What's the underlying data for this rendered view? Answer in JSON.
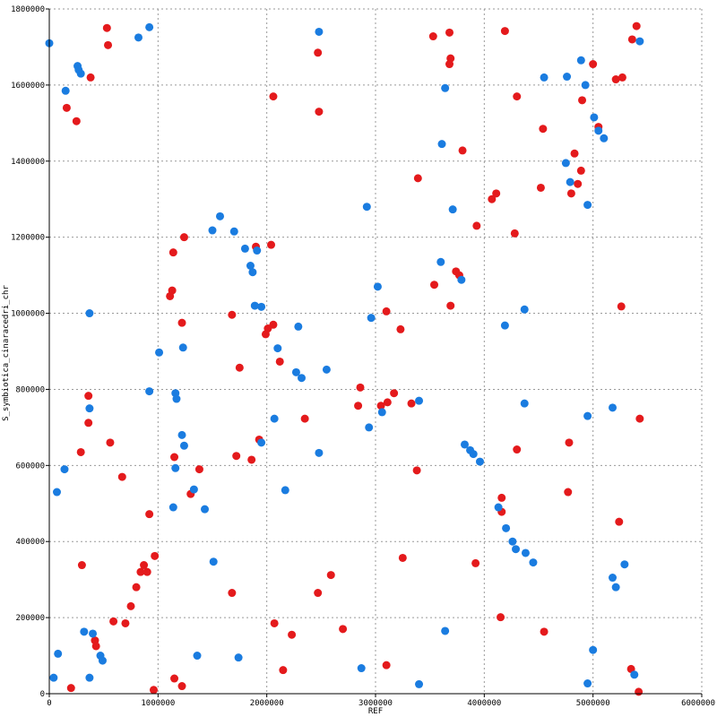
{
  "chart_data": {
    "type": "scatter",
    "title": "",
    "xlabel": "REF",
    "ylabel": "S_symbiotica_cinaracedri_chr",
    "xlim": [
      0,
      6000000
    ],
    "ylim": [
      0,
      1800000
    ],
    "x_ticks": [
      0,
      1000000,
      2000000,
      3000000,
      4000000,
      5000000,
      6000000
    ],
    "y_ticks": [
      0,
      200000,
      400000,
      600000,
      800000,
      1000000,
      1200000,
      1400000,
      1600000,
      1800000
    ],
    "x_tick_labels": [
      "0",
      "1000000",
      "2000000",
      "3000000",
      "4000000",
      "5000000",
      "6000000"
    ],
    "y_tick_labels": [
      "0",
      "200000",
      "400000",
      "600000",
      "800000",
      "1000000",
      "1200000",
      "1400000",
      "1600000",
      "1800000"
    ],
    "grid": true,
    "series": [
      {
        "color": "#e41a1c",
        "points": [
          [
            530000,
            1750000
          ],
          [
            540000,
            1705000
          ],
          [
            160000,
            1540000
          ],
          [
            250000,
            1505000
          ],
          [
            380000,
            1620000
          ],
          [
            2470000,
            1685000
          ],
          [
            2480000,
            1530000
          ],
          [
            2060000,
            1570000
          ],
          [
            3530000,
            1728000
          ],
          [
            3680000,
            1738000
          ],
          [
            3690000,
            1670000
          ],
          [
            3680000,
            1655000
          ],
          [
            4190000,
            1742000
          ],
          [
            4300000,
            1570000
          ],
          [
            3800000,
            1428000
          ],
          [
            3390000,
            1355000
          ],
          [
            3930000,
            1230000
          ],
          [
            4070000,
            1300000
          ],
          [
            4110000,
            1315000
          ],
          [
            4280000,
            1210000
          ],
          [
            4540000,
            1485000
          ],
          [
            4520000,
            1330000
          ],
          [
            4800000,
            1315000
          ],
          [
            4860000,
            1340000
          ],
          [
            4890000,
            1375000
          ],
          [
            4830000,
            1420000
          ],
          [
            4900000,
            1560000
          ],
          [
            5000000,
            1655000
          ],
          [
            5050000,
            1490000
          ],
          [
            5210000,
            1615000
          ],
          [
            5270000,
            1620000
          ],
          [
            5360000,
            1720000
          ],
          [
            5400000,
            1755000
          ],
          [
            3740000,
            1110000
          ],
          [
            3770000,
            1100000
          ],
          [
            3690000,
            1020000
          ],
          [
            3540000,
            1075000
          ],
          [
            3100000,
            1005000
          ],
          [
            3230000,
            958000
          ],
          [
            5260000,
            1018000
          ],
          [
            1140000,
            1160000
          ],
          [
            1240000,
            1200000
          ],
          [
            1110000,
            1045000
          ],
          [
            1130000,
            1060000
          ],
          [
            1220000,
            975000
          ],
          [
            1680000,
            996000
          ],
          [
            1900000,
            1175000
          ],
          [
            2040000,
            1180000
          ],
          [
            1990000,
            945000
          ],
          [
            2010000,
            960000
          ],
          [
            2060000,
            970000
          ],
          [
            2120000,
            873000
          ],
          [
            1750000,
            857000
          ],
          [
            360000,
            783000
          ],
          [
            360000,
            712000
          ],
          [
            290000,
            635000
          ],
          [
            560000,
            660000
          ],
          [
            670000,
            570000
          ],
          [
            920000,
            472000
          ],
          [
            1150000,
            622000
          ],
          [
            1300000,
            525000
          ],
          [
            1380000,
            590000
          ],
          [
            1720000,
            625000
          ],
          [
            1860000,
            615000
          ],
          [
            1930000,
            668000
          ],
          [
            2350000,
            723000
          ],
          [
            2860000,
            805000
          ],
          [
            2840000,
            757000
          ],
          [
            3050000,
            757000
          ],
          [
            3110000,
            766000
          ],
          [
            3170000,
            790000
          ],
          [
            3330000,
            763000
          ],
          [
            3380000,
            587000
          ],
          [
            4300000,
            642000
          ],
          [
            4780000,
            660000
          ],
          [
            4160000,
            515000
          ],
          [
            4160000,
            478000
          ],
          [
            4770000,
            530000
          ],
          [
            5430000,
            723000
          ],
          [
            5240000,
            452000
          ],
          [
            300000,
            338000
          ],
          [
            590000,
            190000
          ],
          [
            700000,
            185000
          ],
          [
            750000,
            230000
          ],
          [
            800000,
            280000
          ],
          [
            840000,
            320000
          ],
          [
            870000,
            338000
          ],
          [
            900000,
            320000
          ],
          [
            970000,
            362000
          ],
          [
            420000,
            140000
          ],
          [
            430000,
            125000
          ],
          [
            1680000,
            265000
          ],
          [
            2590000,
            312000
          ],
          [
            2470000,
            265000
          ],
          [
            3250000,
            357000
          ],
          [
            3920000,
            343000
          ],
          [
            4150000,
            201000
          ],
          [
            4550000,
            163000
          ],
          [
            2070000,
            185000
          ],
          [
            2230000,
            155000
          ],
          [
            2700000,
            170000
          ],
          [
            2150000,
            62000
          ],
          [
            3100000,
            75000
          ],
          [
            200000,
            15000
          ],
          [
            960000,
            10000
          ],
          [
            1150000,
            40000
          ],
          [
            1220000,
            20000
          ],
          [
            5350000,
            65000
          ],
          [
            5420000,
            5000
          ]
        ]
      },
      {
        "color": "#1a7ce0",
        "points": [
          [
            0,
            1710000
          ],
          [
            150000,
            1585000
          ],
          [
            260000,
            1650000
          ],
          [
            270000,
            1640000
          ],
          [
            290000,
            1630000
          ],
          [
            820000,
            1725000
          ],
          [
            920000,
            1752000
          ],
          [
            2480000,
            1740000
          ],
          [
            3640000,
            1592000
          ],
          [
            3610000,
            1445000
          ],
          [
            4550000,
            1620000
          ],
          [
            4760000,
            1622000
          ],
          [
            4890000,
            1665000
          ],
          [
            4930000,
            1600000
          ],
          [
            5010000,
            1515000
          ],
          [
            5050000,
            1480000
          ],
          [
            5100000,
            1460000
          ],
          [
            5430000,
            1715000
          ],
          [
            4750000,
            1395000
          ],
          [
            4790000,
            1345000
          ],
          [
            4950000,
            1285000
          ],
          [
            3710000,
            1273000
          ],
          [
            2920000,
            1280000
          ],
          [
            3600000,
            1135000
          ],
          [
            3790000,
            1088000
          ],
          [
            3020000,
            1070000
          ],
          [
            2960000,
            988000
          ],
          [
            4190000,
            968000
          ],
          [
            4370000,
            1010000
          ],
          [
            1570000,
            1255000
          ],
          [
            1500000,
            1218000
          ],
          [
            1700000,
            1215000
          ],
          [
            1800000,
            1170000
          ],
          [
            1850000,
            1125000
          ],
          [
            1870000,
            1108000
          ],
          [
            1910000,
            1165000
          ],
          [
            1890000,
            1020000
          ],
          [
            1950000,
            1017000
          ],
          [
            2290000,
            965000
          ],
          [
            2270000,
            845000
          ],
          [
            2320000,
            830000
          ],
          [
            2550000,
            852000
          ],
          [
            2100000,
            908000
          ],
          [
            1230000,
            910000
          ],
          [
            1010000,
            897000
          ],
          [
            920000,
            795000
          ],
          [
            370000,
            1000000
          ],
          [
            1160000,
            790000
          ],
          [
            1170000,
            775000
          ],
          [
            370000,
            750000
          ],
          [
            1220000,
            680000
          ],
          [
            1240000,
            652000
          ],
          [
            1950000,
            660000
          ],
          [
            2070000,
            723000
          ],
          [
            2480000,
            633000
          ],
          [
            2940000,
            700000
          ],
          [
            3060000,
            740000
          ],
          [
            3400000,
            770000
          ],
          [
            3820000,
            655000
          ],
          [
            3870000,
            640000
          ],
          [
            3900000,
            630000
          ],
          [
            3960000,
            610000
          ],
          [
            4370000,
            763000
          ],
          [
            4950000,
            730000
          ],
          [
            5180000,
            752000
          ],
          [
            140000,
            590000
          ],
          [
            70000,
            530000
          ],
          [
            1140000,
            490000
          ],
          [
            1160000,
            593000
          ],
          [
            1330000,
            537000
          ],
          [
            1430000,
            485000
          ],
          [
            2170000,
            535000
          ],
          [
            4130000,
            490000
          ],
          [
            4200000,
            435000
          ],
          [
            4260000,
            400000
          ],
          [
            4290000,
            380000
          ],
          [
            4380000,
            370000
          ],
          [
            4450000,
            345000
          ],
          [
            5180000,
            305000
          ],
          [
            5210000,
            280000
          ],
          [
            5290000,
            340000
          ],
          [
            1510000,
            347000
          ],
          [
            80000,
            105000
          ],
          [
            40000,
            42000
          ],
          [
            320000,
            163000
          ],
          [
            400000,
            158000
          ],
          [
            470000,
            100000
          ],
          [
            490000,
            87000
          ],
          [
            370000,
            42000
          ],
          [
            1360000,
            100000
          ],
          [
            1740000,
            95000
          ],
          [
            2870000,
            67000
          ],
          [
            3400000,
            25000
          ],
          [
            3640000,
            165000
          ],
          [
            4950000,
            27000
          ],
          [
            5000000,
            115000
          ],
          [
            5380000,
            50000
          ]
        ]
      }
    ]
  }
}
